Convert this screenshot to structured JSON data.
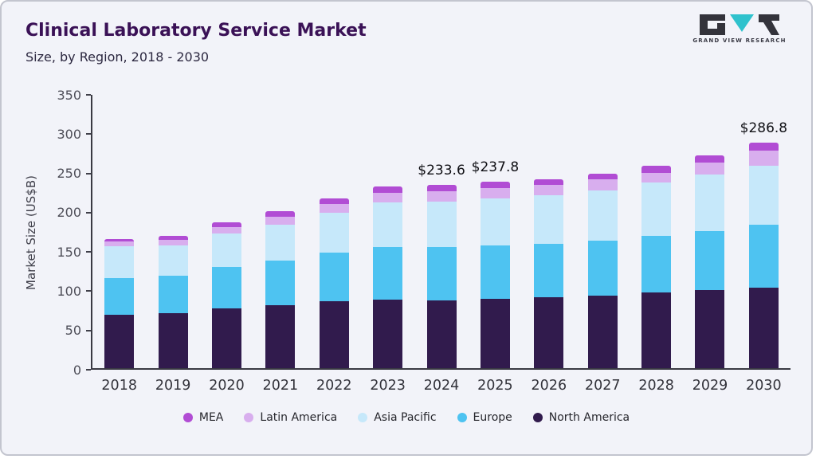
{
  "header": {
    "title": "Clinical Laboratory Service Market",
    "subtitle": "Size, by Region, 2018 - 2030",
    "logo_text": "GRAND VIEW RESEARCH"
  },
  "colors": {
    "mea": "#b14cd4",
    "latin_america": "#d8aeee",
    "asia_pacific": "#c6e8fa",
    "europe": "#4ec3f1",
    "north_america": "#311b4d",
    "logo_dark": "#33333b",
    "logo_teal": "#2fc2cd"
  },
  "chart_data": {
    "type": "bar",
    "stacked": true,
    "title": "Clinical Laboratory Service Market Size, by Region, 2018 - 2030",
    "xlabel": "",
    "ylabel": "Market Size (US$B)",
    "ylim": [
      0,
      350
    ],
    "yticks": [
      0,
      50,
      100,
      150,
      200,
      250,
      300,
      350
    ],
    "grid": false,
    "categories": [
      2018,
      2019,
      2020,
      2021,
      2022,
      2023,
      2024,
      2025,
      2026,
      2027,
      2028,
      2029,
      2030
    ],
    "series": [
      {
        "name": "North America",
        "color": "#311b4d",
        "values": [
          68,
          70,
          76,
          80,
          85,
          87,
          86,
          88,
          90,
          92,
          96,
          99,
          103
        ]
      },
      {
        "name": "Europe",
        "color": "#4ec3f1",
        "values": [
          47,
          48,
          53,
          57,
          62,
          67,
          68,
          68,
          68,
          70,
          72,
          76,
          80
        ]
      },
      {
        "name": "Asia Pacific",
        "color": "#c6e8fa",
        "values": [
          40,
          38,
          43,
          46,
          51,
          57,
          58,
          60,
          62,
          64,
          68,
          72,
          75
        ]
      },
      {
        "name": "Latin America",
        "color": "#d8aeee",
        "values": [
          6,
          7,
          8,
          10,
          11,
          12,
          13,
          13,
          13,
          14,
          13,
          15,
          19
        ]
      },
      {
        "name": "MEA",
        "color": "#b14cd4",
        "values": [
          4,
          5,
          6,
          7,
          7,
          8,
          8.6,
          8.8,
          8,
          8,
          9,
          9,
          9.8
        ]
      }
    ],
    "annotations": [
      {
        "category": 2024,
        "label": "$233.6"
      },
      {
        "category": 2025,
        "label": "$237.8"
      },
      {
        "category": 2030,
        "label": "$286.8"
      }
    ],
    "legend": {
      "position": "bottom",
      "items": [
        "MEA",
        "Latin America",
        "Asia Pacific",
        "Europe",
        "North America"
      ]
    }
  }
}
